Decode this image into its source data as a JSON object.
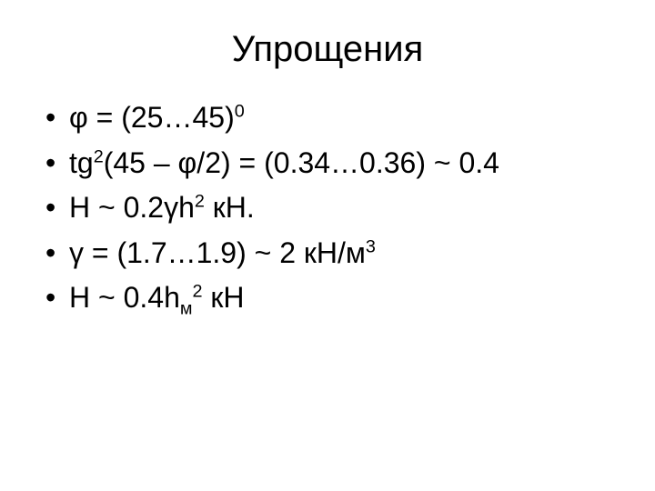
{
  "title": "Упрощения",
  "colors": {
    "background": "#ffffff",
    "text": "#000000",
    "bullet": "#000000"
  },
  "typography": {
    "title_fontsize": 40,
    "body_fontsize": 32,
    "font_family": "Arial",
    "title_weight": 400,
    "body_weight": 400
  },
  "bullets": [
    {
      "plain": "φ = (25…45)0",
      "parts": {
        "pre": "φ = (25…45)",
        "sup": "0",
        "post": ""
      }
    },
    {
      "plain": " tg2(45 – φ/2) = (0.34…0.36) ~ 0.4",
      "parts": {
        "pre": " tg",
        "sup": "2",
        "post": "(45 – φ/2) = (0.34…0.36) ~ 0.4"
      }
    },
    {
      "plain": "H ~ 0.2γh2 кН.",
      "parts": {
        "pre": "H ~ 0.2γh",
        "sup": "2",
        "post": " кН."
      }
    },
    {
      "plain": "γ = (1.7…1.9) ~ 2 кН/м3",
      "parts": {
        "pre": "γ = (1.7…1.9) ~ 2 кН/м",
        "sup": "3",
        "post": ""
      }
    },
    {
      "plain": "H ~ 0.4hм2 кН",
      "parts": {
        "pre": "H ~ 0.4h",
        "sub": "м",
        "sup": "2",
        "post": " кН"
      }
    }
  ]
}
